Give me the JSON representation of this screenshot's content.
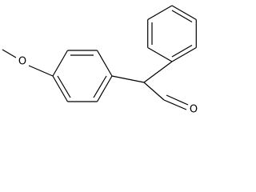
{
  "atoms": [
    {
      "label": "O"
    },
    {
      "label": "O"
    }
  ]
}
